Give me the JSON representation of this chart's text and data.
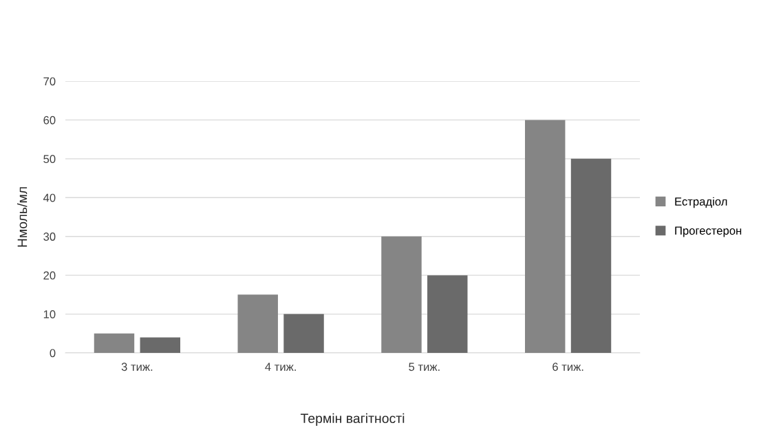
{
  "chart_data": {
    "type": "bar",
    "xlabel": "Термін вагітності",
    "ylabel": "Нмоль/мл",
    "categories": [
      "3 тиж.",
      "4 тиж.",
      "5 тиж.",
      "6 тиж."
    ],
    "series": [
      {
        "name": "Естрадіол",
        "color": "#858585",
        "values": [
          5,
          15,
          30,
          60
        ]
      },
      {
        "name": "Прогестерон",
        "color": "#6a6a6a",
        "values": [
          4,
          10,
          20,
          50
        ]
      }
    ],
    "ylim": [
      0,
      70
    ],
    "yticks": [
      0,
      10,
      20,
      30,
      40,
      50,
      60,
      70
    ],
    "grid": "y",
    "legend": "right"
  }
}
